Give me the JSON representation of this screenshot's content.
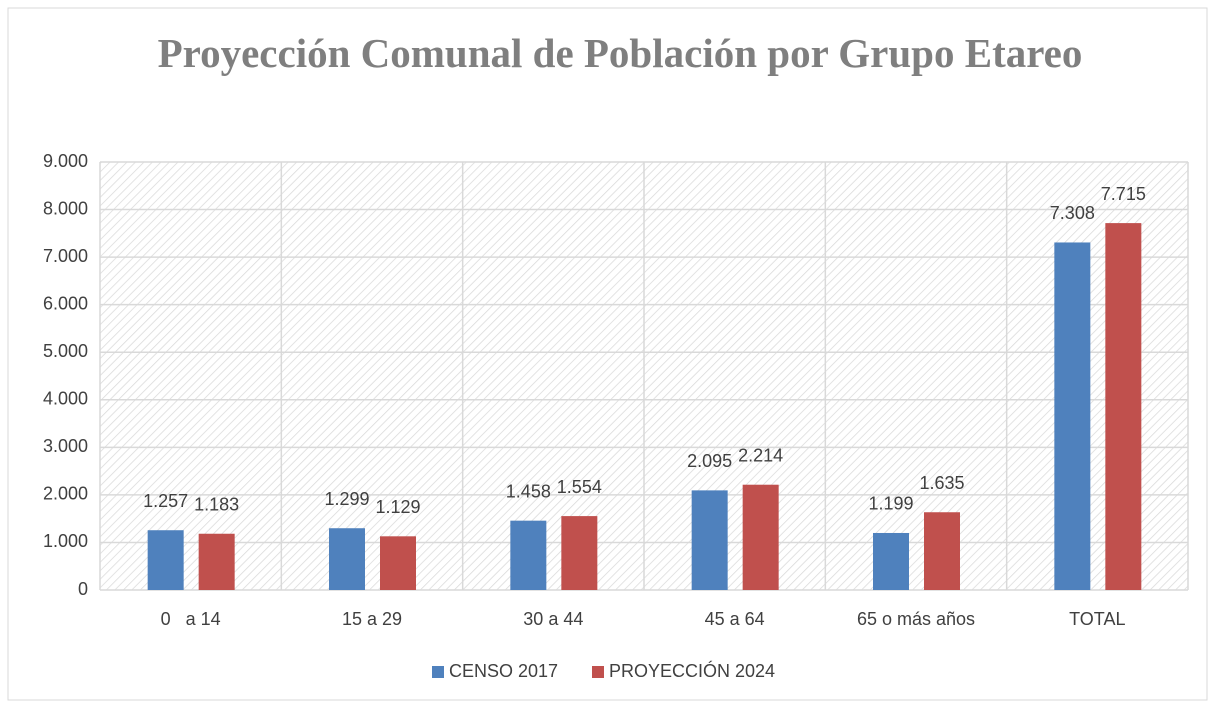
{
  "chart_data": {
    "type": "bar",
    "title": "Proyección Comunal de Población por Grupo Etareo",
    "categories": [
      "0   a 14",
      "15 a 29",
      "30 a 44",
      "45 a 64",
      "65 o más años",
      "TOTAL"
    ],
    "series": [
      {
        "name": "CENSO 2017",
        "color": "#4f81bd",
        "values": [
          1257,
          1299,
          1458,
          2095,
          1199,
          7308
        ],
        "value_labels": [
          "1.257",
          "1.299",
          "1.458",
          "2.095",
          "1.199",
          "7.308"
        ]
      },
      {
        "name": "PROYECCIÓN 2024",
        "color": "#c0504d",
        "values": [
          1183,
          1129,
          1554,
          2214,
          1635,
          7715
        ],
        "value_labels": [
          "1.183",
          "1.129",
          "1.554",
          "2.214",
          "1.635",
          "7.715"
        ]
      }
    ],
    "ylim": [
      0,
      9000
    ],
    "yticks": [
      0,
      {
        "value": 1000,
        "label": "1.000"
      },
      {
        "value": 2000,
        "label": "2.000"
      },
      {
        "value": 3000,
        "label": "3.000"
      },
      {
        "value": 4000,
        "label": "4.000"
      },
      {
        "value": 5000,
        "label": "5.000"
      },
      {
        "value": 6000,
        "label": "6.000"
      },
      {
        "value": 7000,
        "label": "7.000"
      },
      {
        "value": 8000,
        "label": "8.000"
      },
      {
        "value": 9000,
        "label": "9.000"
      }
    ],
    "grid": true,
    "legend": "bottom"
  }
}
